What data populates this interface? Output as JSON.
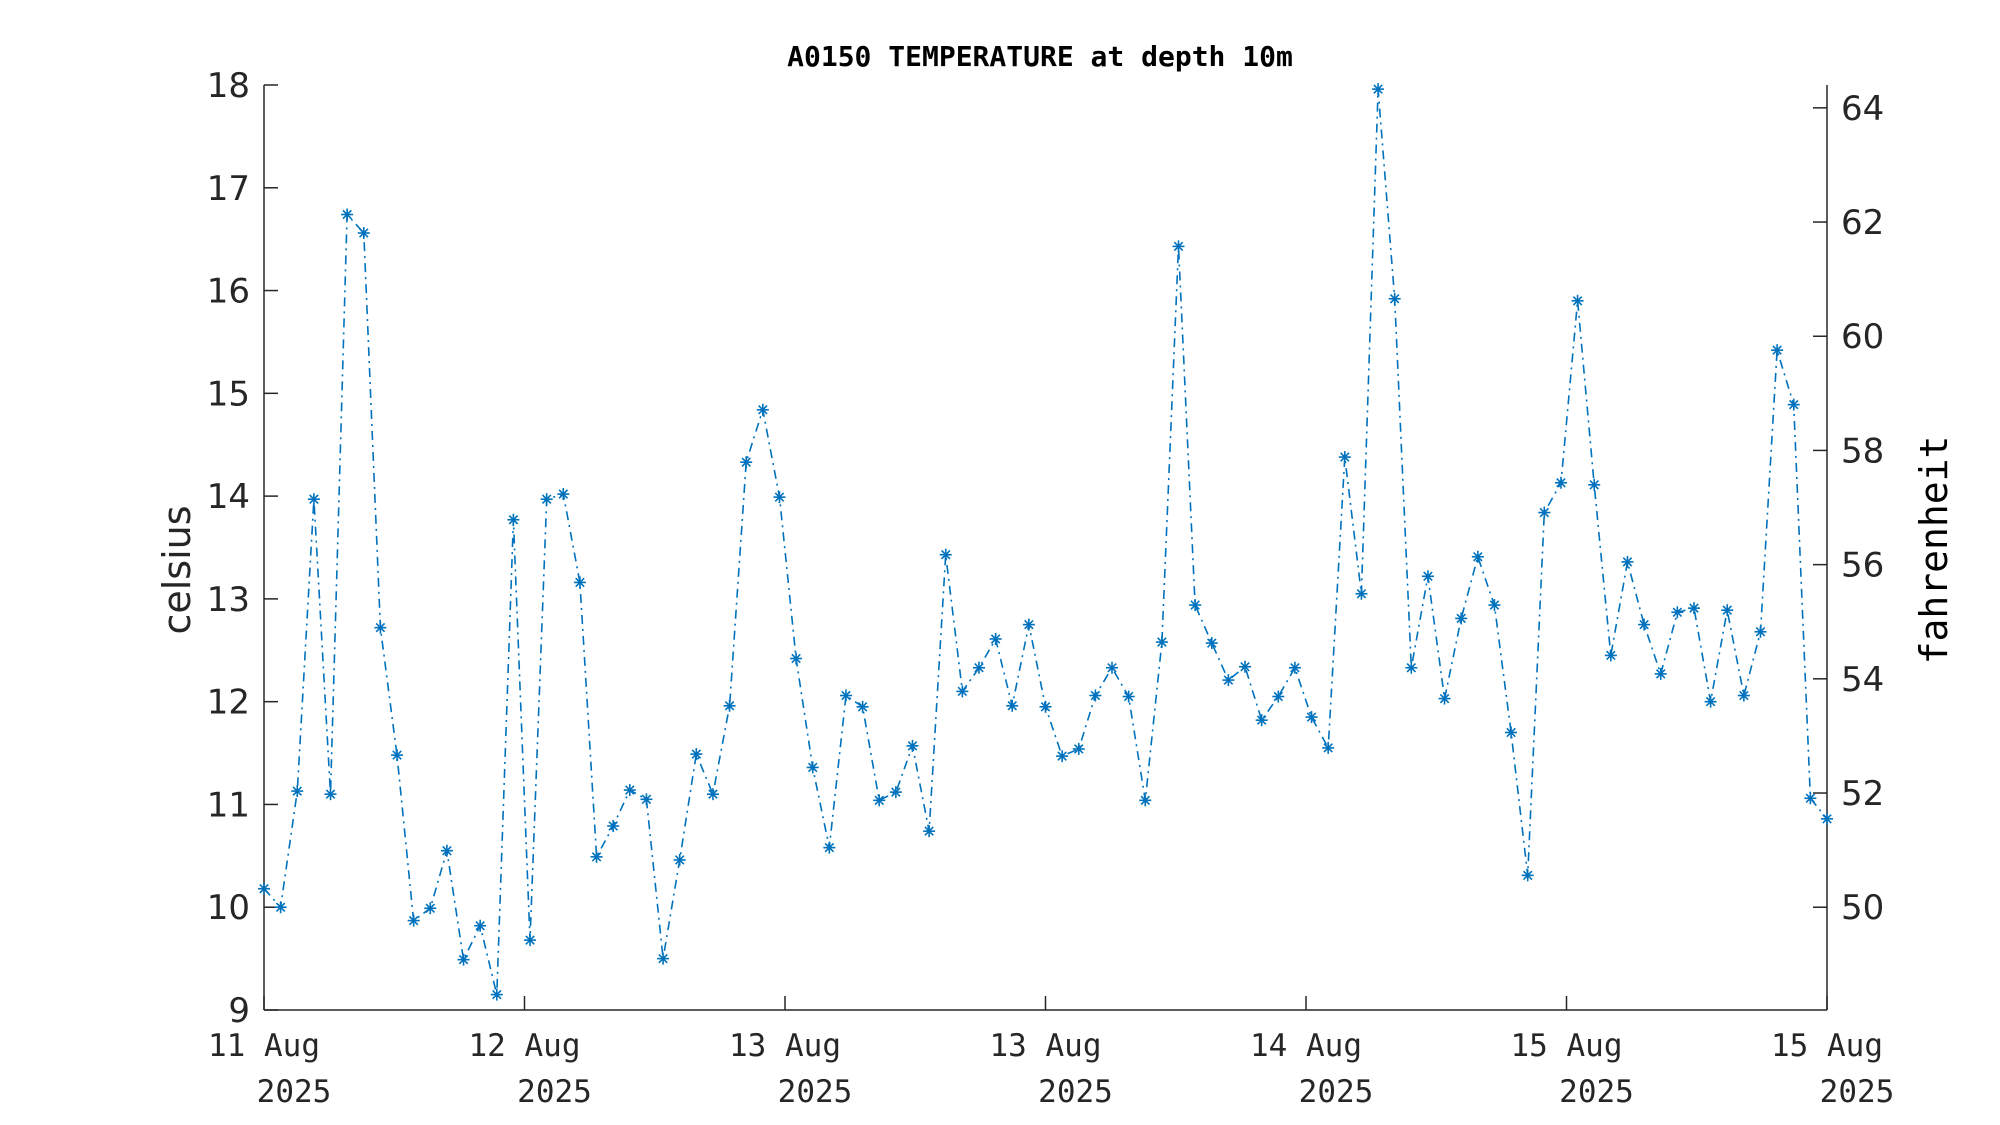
{
  "chart_data": {
    "type": "line",
    "title": "A0150 TEMPERATURE at depth 10m",
    "ylabel": "celsius",
    "ylabel_right": "fahrenheit",
    "ylim": [
      9,
      18
    ],
    "ylim_right": [
      48.2,
      64.4
    ],
    "yticks": [
      "9",
      "10",
      "11",
      "12",
      "13",
      "14",
      "15",
      "16",
      "17",
      "18"
    ],
    "yticks_right": [
      "50",
      "52",
      "54",
      "56",
      "58",
      "60",
      "62",
      "64"
    ],
    "xticks": [
      {
        "line1": "11 Aug",
        "line2": "2025"
      },
      {
        "line1": "12 Aug",
        "line2": "2025"
      },
      {
        "line1": "13 Aug",
        "line2": "2025"
      },
      {
        "line1": "13 Aug",
        "line2": "2025"
      },
      {
        "line1": "14 Aug",
        "line2": "2025"
      },
      {
        "line1": "15 Aug",
        "line2": "2025"
      },
      {
        "line1": "15 Aug",
        "line2": "2025"
      }
    ],
    "line_color": "#0072BD",
    "line_style": "dash-dot",
    "marker": "asterisk",
    "grid": false,
    "series": [
      {
        "values": [
          10.18,
          10.0,
          11.13,
          13.97,
          11.1,
          16.74,
          16.56,
          12.72,
          11.48,
          9.87,
          9.99,
          10.55,
          9.49,
          9.82,
          9.15,
          13.77,
          9.68,
          13.97,
          14.02,
          13.16,
          10.49,
          10.79,
          11.14,
          11.05,
          9.5,
          10.46,
          11.49,
          11.1,
          11.96,
          14.33,
          14.84,
          13.99,
          12.42,
          11.36,
          10.58,
          12.06,
          11.95,
          11.04,
          11.12,
          11.57,
          10.74,
          13.43,
          12.1,
          12.33,
          12.61,
          11.96,
          12.75,
          11.95,
          11.47,
          11.54,
          12.06,
          12.33,
          12.05,
          11.04,
          12.58,
          16.43,
          12.94,
          12.57,
          12.21,
          12.34,
          11.82,
          12.05,
          12.33,
          11.85,
          11.55,
          14.38,
          13.05,
          17.96,
          15.92,
          12.33,
          13.22,
          12.03,
          12.81,
          13.41,
          12.94,
          11.7,
          10.31,
          13.84,
          14.13,
          15.9,
          14.11,
          12.45,
          13.36,
          12.75,
          12.27,
          12.87,
          12.91,
          12.0,
          12.89,
          12.06,
          12.68,
          15.42,
          14.89,
          11.06,
          10.86
        ]
      }
    ]
  }
}
